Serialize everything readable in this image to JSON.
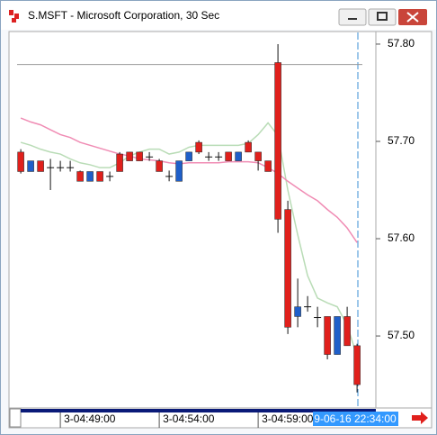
{
  "window": {
    "title": "S.MSFT - Microsoft Corporation, 30 Sec",
    "cursor_time": "9-06-16 22:34:00"
  },
  "chart_data": {
    "type": "candlestick",
    "up_color": "#1f5fc9",
    "down_color": "#e0201c",
    "ylim": [
      57.426,
      57.812
    ],
    "yticks": [
      {
        "value": 57.5,
        "label": "57.50"
      },
      {
        "value": 57.6,
        "label": "57.60"
      },
      {
        "value": 57.7,
        "label": "57.70"
      },
      {
        "value": 57.8,
        "label": "57.80"
      }
    ],
    "xlim": [
      -1.1,
      35.9
    ],
    "xticks": [
      {
        "value": 4,
        "label": "3-04:49:00"
      },
      {
        "value": 14,
        "label": "3-04:54:00"
      },
      {
        "value": 24,
        "label": "3-04:59:00"
      }
    ],
    "hline": 57.779,
    "open": [
      57.689,
      57.669,
      57.68,
      57.673,
      57.673,
      57.673,
      57.669,
      57.659,
      57.669,
      57.664,
      57.687,
      57.689,
      57.689,
      57.684,
      57.68,
      57.664,
      57.659,
      57.68,
      57.699,
      57.684,
      57.684,
      57.689,
      57.68,
      57.699,
      57.689,
      57.68,
      57.781,
      57.63,
      57.52,
      57.53,
      57.519,
      57.52,
      57.481,
      57.52,
      57.49
    ],
    "high": [
      57.692,
      57.68,
      57.68,
      57.682,
      57.68,
      57.68,
      57.67,
      57.669,
      57.669,
      57.669,
      57.689,
      57.689,
      57.689,
      57.689,
      57.682,
      57.67,
      57.68,
      57.689,
      57.701,
      57.689,
      57.689,
      57.689,
      57.689,
      57.701,
      57.689,
      57.68,
      57.8,
      57.639,
      57.559,
      57.541,
      57.53,
      57.52,
      57.52,
      57.53,
      57.492
    ],
    "low": [
      57.667,
      57.669,
      57.669,
      57.65,
      57.669,
      57.669,
      57.659,
      57.659,
      57.659,
      57.659,
      57.669,
      57.68,
      57.68,
      57.68,
      57.669,
      57.659,
      57.659,
      57.68,
      57.687,
      57.68,
      57.68,
      57.68,
      57.68,
      57.689,
      57.67,
      57.669,
      57.606,
      57.502,
      57.509,
      57.525,
      57.509,
      57.476,
      57.481,
      57.49,
      57.442
    ],
    "close": [
      57.669,
      57.68,
      57.669,
      57.673,
      57.673,
      57.673,
      57.659,
      57.669,
      57.659,
      57.664,
      57.669,
      57.68,
      57.68,
      57.684,
      57.669,
      57.664,
      57.68,
      57.689,
      57.689,
      57.684,
      57.684,
      57.68,
      57.689,
      57.689,
      57.68,
      57.669,
      57.62,
      57.509,
      57.53,
      57.53,
      57.519,
      57.481,
      57.52,
      57.49,
      57.45
    ],
    "series": [
      {
        "color": "#b9dcb6",
        "values": [
          57.699,
          57.696,
          57.692,
          57.689,
          57.687,
          57.682,
          57.678,
          57.676,
          57.673,
          57.673,
          57.678,
          57.685,
          57.689,
          57.692,
          57.692,
          57.687,
          57.689,
          57.694,
          57.696,
          57.696,
          57.696,
          57.696,
          57.696,
          57.698,
          57.707,
          57.719,
          57.706,
          57.65,
          57.604,
          57.562,
          57.539,
          57.534,
          57.53,
          57.511,
          57.479
        ]
      },
      {
        "color": "#f08cb4",
        "values": [
          57.724,
          57.72,
          57.717,
          57.712,
          57.707,
          57.704,
          57.699,
          57.696,
          57.693,
          57.69,
          57.687,
          57.685,
          57.682,
          57.681,
          57.68,
          57.678,
          57.677,
          57.678,
          57.678,
          57.678,
          57.678,
          57.679,
          57.679,
          57.679,
          57.678,
          57.673,
          57.667,
          57.659,
          57.652,
          57.645,
          57.639,
          57.63,
          57.622,
          57.611,
          57.596
        ]
      }
    ]
  }
}
